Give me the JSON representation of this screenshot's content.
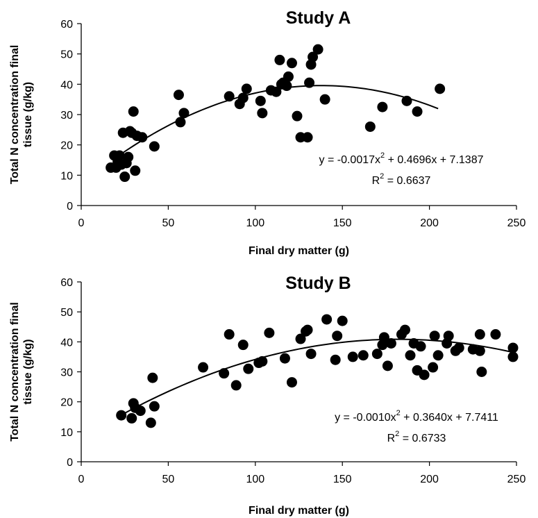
{
  "charts": [
    {
      "type": "scatter",
      "title": "Study A",
      "xlabel": "Final dry matter (g)",
      "ylabel": "Total N concentration final tissue (g/kg)",
      "ylabel_lines": [
        "Total N concentration final",
        "tissue (g/kg)"
      ],
      "xlim": [
        0,
        250
      ],
      "ylim": [
        0,
        60
      ],
      "xticks": [
        0,
        50,
        100,
        150,
        200,
        250
      ],
      "yticks": [
        0,
        10,
        20,
        30,
        40,
        50,
        60
      ],
      "grid": false,
      "trendline": {
        "type": "polynomial",
        "coefficients": [
          -0.0017,
          0.4696,
          7.1387
        ],
        "x_range": [
          18,
          205
        ],
        "equation_prefix": "y = -0.0017x",
        "equation_suffix": " + 0.4696x + 7.1387",
        "r2_prefix": "R",
        "r2_suffix": " = 0.6637",
        "superscript": "2"
      },
      "points": [
        [
          17,
          12.5
        ],
        [
          19,
          16.5
        ],
        [
          20,
          12.5
        ],
        [
          21,
          14.5
        ],
        [
          22,
          16.5
        ],
        [
          23,
          13.5
        ],
        [
          24,
          24
        ],
        [
          25,
          9.5
        ],
        [
          26,
          14
        ],
        [
          27,
          16
        ],
        [
          28,
          24.5
        ],
        [
          29,
          24
        ],
        [
          30,
          31
        ],
        [
          31,
          11.5
        ],
        [
          32,
          23
        ],
        [
          35,
          22.5
        ],
        [
          42,
          19.5
        ],
        [
          56,
          36.5
        ],
        [
          57,
          27.5
        ],
        [
          59,
          30.5
        ],
        [
          85,
          36
        ],
        [
          91,
          33.5
        ],
        [
          93,
          35.5
        ],
        [
          95,
          38.5
        ],
        [
          103,
          34.5
        ],
        [
          104,
          30.5
        ],
        [
          109,
          38
        ],
        [
          112,
          37.5
        ],
        [
          114,
          48
        ],
        [
          115,
          40
        ],
        [
          116,
          40.5
        ],
        [
          118,
          39.5
        ],
        [
          119,
          42.5
        ],
        [
          121,
          47
        ],
        [
          124,
          29.5
        ],
        [
          126,
          22.5
        ],
        [
          130,
          22.5
        ],
        [
          131,
          40.5
        ],
        [
          132,
          46.5
        ],
        [
          133,
          49
        ],
        [
          136,
          51.5
        ],
        [
          140,
          35
        ],
        [
          166,
          26
        ],
        [
          173,
          32.5
        ],
        [
          187,
          34.5
        ],
        [
          193,
          31
        ],
        [
          206,
          38.5
        ]
      ]
    },
    {
      "type": "scatter",
      "title": "Study B",
      "xlabel": "Final dry matter (g)",
      "ylabel": "Total N concentration final tissue (g/kg)",
      "ylabel_lines": [
        "Total N concentration final",
        "tissue (g/kg)"
      ],
      "xlim": [
        0,
        250
      ],
      "ylim": [
        0,
        60
      ],
      "xticks": [
        0,
        50,
        100,
        150,
        200,
        250
      ],
      "yticks": [
        0,
        10,
        20,
        30,
        40,
        50,
        60
      ],
      "grid": false,
      "trendline": {
        "type": "polynomial",
        "coefficients": [
          -0.001,
          0.364,
          7.7411
        ],
        "x_range": [
          25,
          248
        ],
        "equation_prefix": "y = -0.0010x",
        "equation_suffix": " + 0.3640x + 7.7411",
        "r2_prefix": "R",
        "r2_suffix": " = 0.6733",
        "superscript": "2"
      },
      "points": [
        [
          23,
          15.5
        ],
        [
          29,
          14.5
        ],
        [
          30,
          19.5
        ],
        [
          31,
          18
        ],
        [
          34,
          17
        ],
        [
          40,
          13
        ],
        [
          41,
          28
        ],
        [
          42,
          18.5
        ],
        [
          70,
          31.5
        ],
        [
          82,
          29.5
        ],
        [
          85,
          42.5
        ],
        [
          89,
          25.5
        ],
        [
          93,
          39
        ],
        [
          96,
          31
        ],
        [
          102,
          33
        ],
        [
          104,
          33.5
        ],
        [
          108,
          43
        ],
        [
          117,
          34.5
        ],
        [
          121,
          26.5
        ],
        [
          126,
          41
        ],
        [
          129,
          43.5
        ],
        [
          130,
          44
        ],
        [
          132,
          36
        ],
        [
          141,
          47.5
        ],
        [
          146,
          34
        ],
        [
          147,
          42
        ],
        [
          150,
          47
        ],
        [
          156,
          35
        ],
        [
          162,
          35.5
        ],
        [
          170,
          36
        ],
        [
          173,
          39
        ],
        [
          174,
          41.5
        ],
        [
          176,
          32
        ],
        [
          178,
          39.5
        ],
        [
          184,
          42.5
        ],
        [
          186,
          44
        ],
        [
          189,
          35.5
        ],
        [
          191,
          39.5
        ],
        [
          193,
          30.5
        ],
        [
          195,
          38.5
        ],
        [
          197,
          29
        ],
        [
          202,
          31.5
        ],
        [
          203,
          42
        ],
        [
          205,
          35.5
        ],
        [
          210,
          39.5
        ],
        [
          211,
          42
        ],
        [
          215,
          37
        ],
        [
          217,
          38
        ],
        [
          225,
          37.5
        ],
        [
          229,
          37
        ],
        [
          229,
          42.5
        ],
        [
          230,
          30
        ],
        [
          238,
          42.5
        ],
        [
          248,
          38
        ],
        [
          248,
          35
        ]
      ]
    }
  ]
}
